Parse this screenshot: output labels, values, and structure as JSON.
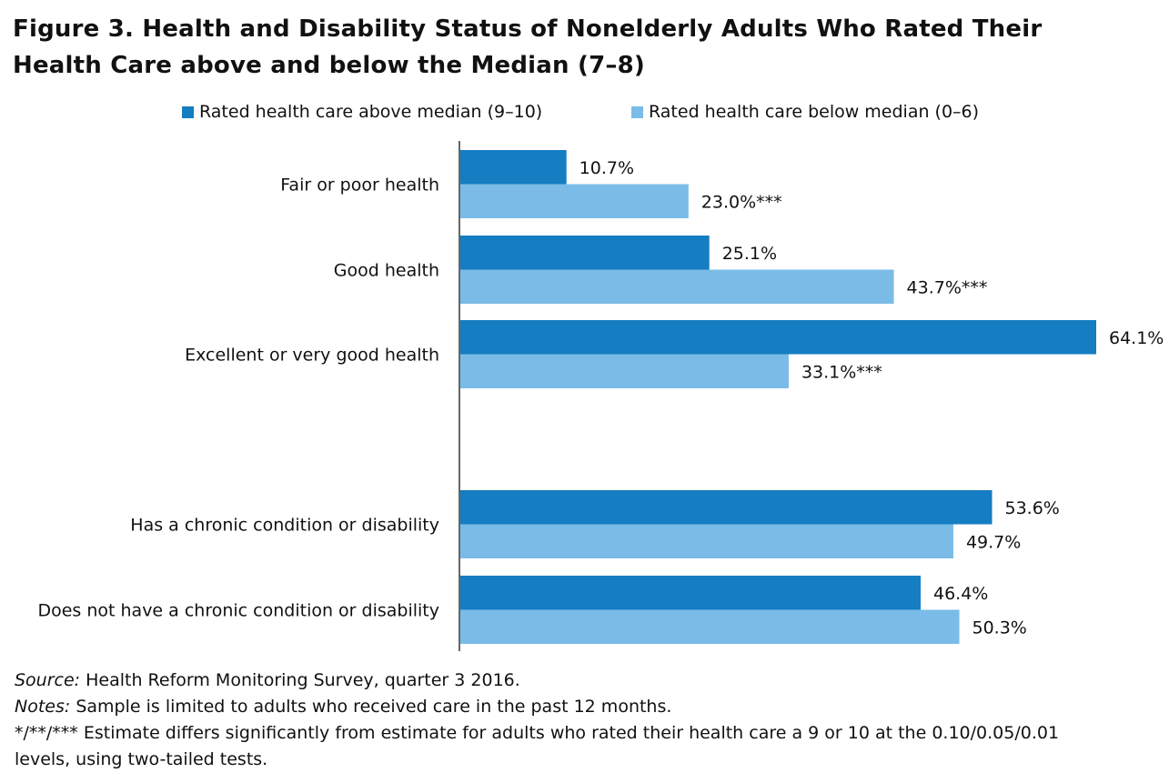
{
  "title_line1": "Figure 3. Health and Disability Status of Nonelderly Adults Who Rated Their",
  "title_line2": "Health Care above and below the Median (7–8)",
  "colors": {
    "above": "#157dc2",
    "below": "#7abce7",
    "axis": "#666666"
  },
  "chart_data": {
    "type": "bar",
    "orientation": "horizontal",
    "categories": [
      "Fair or poor health",
      "Good health",
      "Excellent or very good health",
      "Has a chronic condition or disability",
      "Does not have a chronic condition or disability"
    ],
    "series": [
      {
        "name": "Rated health care above median (9–10)",
        "values": [
          10.7,
          25.1,
          64.1,
          53.6,
          46.4
        ],
        "labels": [
          "10.7%",
          "25.1%",
          "64.1%",
          "53.6%",
          "46.4%"
        ]
      },
      {
        "name": "Rated health care below median (0–6)",
        "values": [
          23.0,
          43.7,
          33.1,
          49.7,
          50.3
        ],
        "labels": [
          "23.0%***",
          "43.7%***",
          "33.1%***",
          "49.7%",
          "50.3%"
        ]
      }
    ],
    "legend_position": "top",
    "grid": false
  },
  "footer": {
    "source_label": "Source:",
    "source_text": " Health Reform Monitoring Survey, quarter 3 2016.",
    "notes_label": "Notes:",
    "notes_text": " Sample is limited to adults who received care in the past 12 months.",
    "sig_line1": "*/**/*** Estimate differs significantly from estimate for adults who rated their health care a 9 or 10 at the 0.10/0.05/0.01",
    "sig_line2": "levels, using two-tailed tests."
  }
}
